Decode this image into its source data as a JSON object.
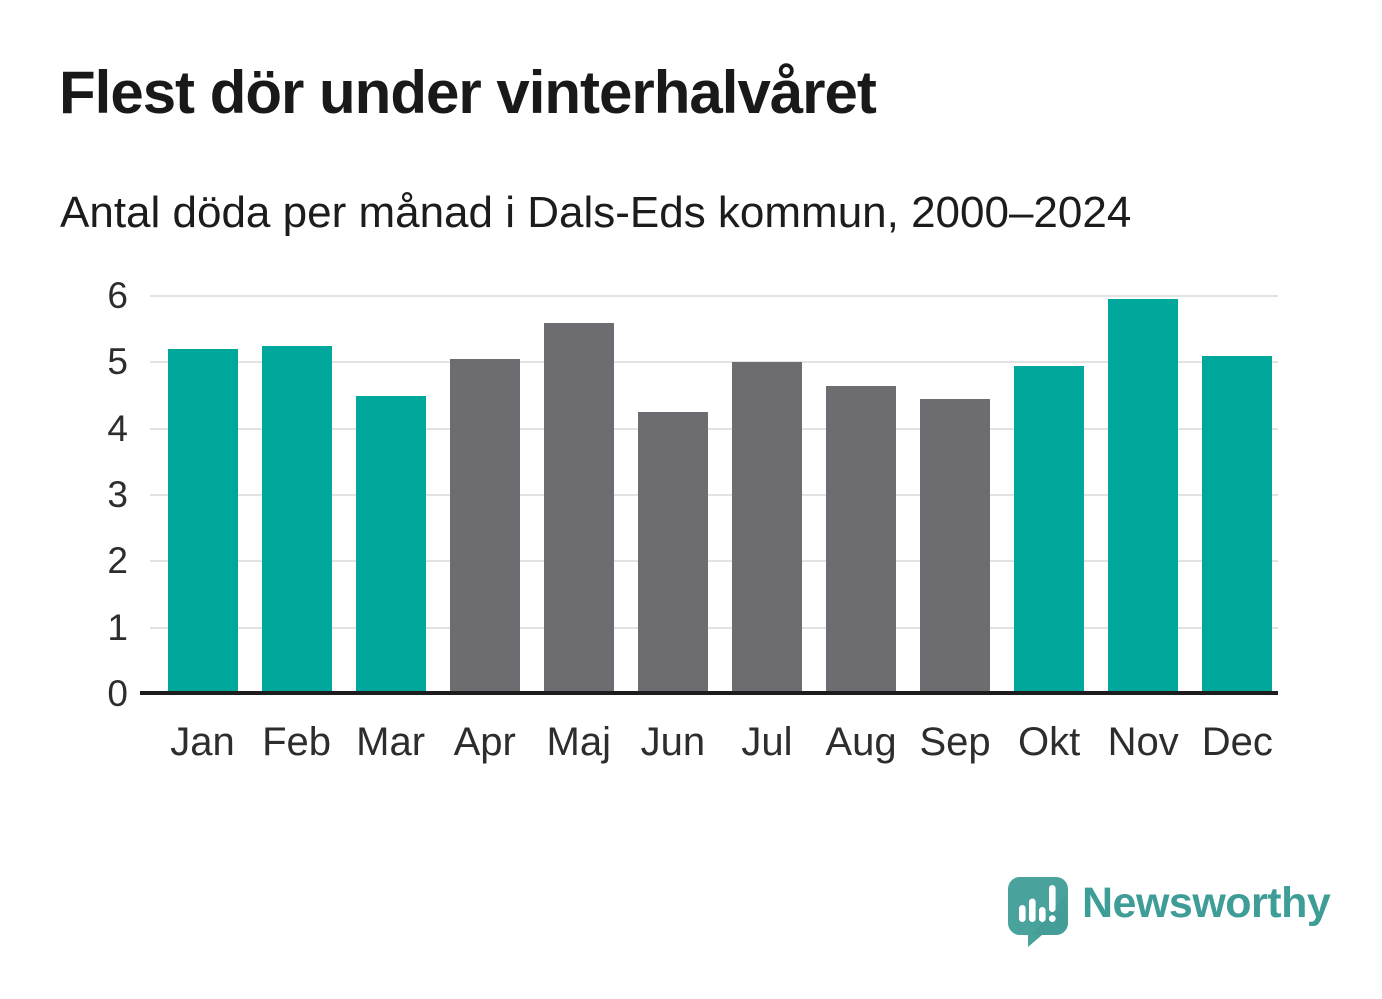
{
  "header": {
    "title": "Flest dör under vinterhalvåret",
    "subtitle": "Antal döda per månad i Dals-Eds kommun, 2000–2024"
  },
  "chart_data": {
    "type": "bar",
    "title": "Flest dör under vinterhalvåret",
    "subtitle": "Antal döda per månad i Dals-Eds kommun, 2000–2024",
    "categories": [
      "Jan",
      "Feb",
      "Mar",
      "Apr",
      "Maj",
      "Jun",
      "Jul",
      "Aug",
      "Sep",
      "Okt",
      "Nov",
      "Dec"
    ],
    "values": [
      5.2,
      5.25,
      4.5,
      5.05,
      5.6,
      4.25,
      5.0,
      4.65,
      4.45,
      4.95,
      5.95,
      5.1
    ],
    "bar_palette": [
      "winter",
      "winter",
      "winter",
      "summer",
      "summer",
      "summer",
      "summer",
      "summer",
      "summer",
      "winter",
      "winter",
      "winter"
    ],
    "colors": {
      "winter": "#00a79b",
      "summer": "#6c6c71",
      "gridline": "#e3e3e3",
      "axis_line": "#1d1d1d",
      "tick_text": "#2d2d2d"
    },
    "xlabel": "",
    "ylabel": "",
    "ylim": [
      0,
      6
    ],
    "yticks": [
      0,
      1,
      2,
      3,
      4,
      5,
      6
    ],
    "grid": true,
    "legend": "none"
  },
  "footer": {
    "brand": "Newsworthy",
    "brand_color": "#3f9d97",
    "logo_icon": "speech-bubble-bar-chart-icon"
  }
}
